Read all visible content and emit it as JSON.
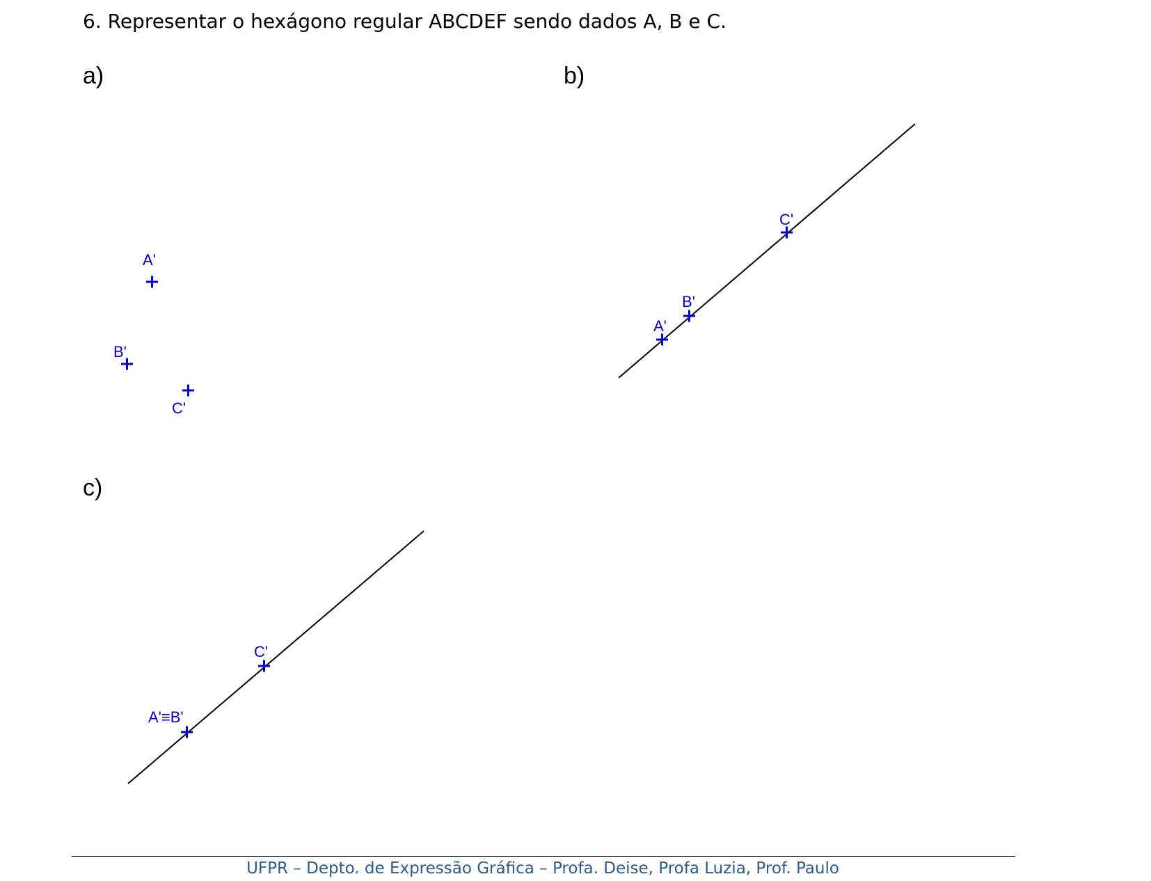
{
  "statement": "6. Representar o hexágono regular ABCDEF sendo dados A, B e C.",
  "parts": {
    "a": {
      "label": "a)",
      "points": {
        "A": "A'",
        "B": "B'",
        "C": "C'"
      }
    },
    "b": {
      "label": "b)",
      "points": {
        "A": "A'",
        "B": "B'",
        "C": "C'"
      }
    },
    "c": {
      "label": "c)",
      "points": {
        "AB": "A'≡B'",
        "C": "C'"
      }
    }
  },
  "footer": "UFPR – Depto. de Expressão Gráfica – Profa. Deise, Profa Luzia, Prof. Paulo",
  "colors": {
    "point": "#0000cc",
    "line": "#000000",
    "footer_text": "#2e5a8a"
  }
}
